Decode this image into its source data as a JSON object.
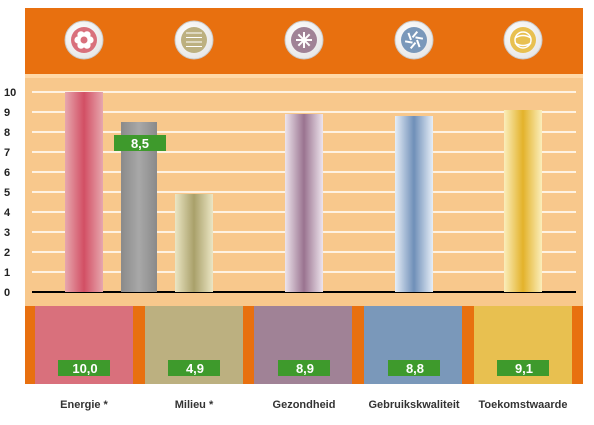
{
  "chart_data": {
    "type": "bar",
    "title": "",
    "xlabel": "",
    "ylabel": "",
    "ylim": [
      0,
      10
    ],
    "y_ticks": [
      "0",
      "1",
      "2",
      "3",
      "4",
      "5",
      "6",
      "7",
      "8",
      "9",
      "10"
    ],
    "categories": [
      "Energie *",
      "Milieu *",
      "Gezondheid",
      "Gebruikskwaliteit",
      "Toekomstwaarde"
    ],
    "values": [
      10.0,
      4.9,
      8.9,
      8.8,
      9.1
    ],
    "value_labels": [
      "10,0",
      "4,9",
      "8,9",
      "8,8",
      "9,1"
    ],
    "reference_bar": {
      "value": 8.5,
      "label": "8,5"
    },
    "colors": {
      "header": "#E8700F",
      "plot_background": "#F8C88C",
      "label_badge": "#3E9A2C",
      "categories": [
        "#D9707C",
        "#BCB080",
        "#A08296",
        "#7A98BA",
        "#E8C050"
      ],
      "reference_bar": "#9A9A9A"
    },
    "icons": [
      "flower-icon",
      "brick-wall-icon",
      "snowflake-icon",
      "aperture-icon",
      "globe-icon"
    ],
    "grid": true
  }
}
